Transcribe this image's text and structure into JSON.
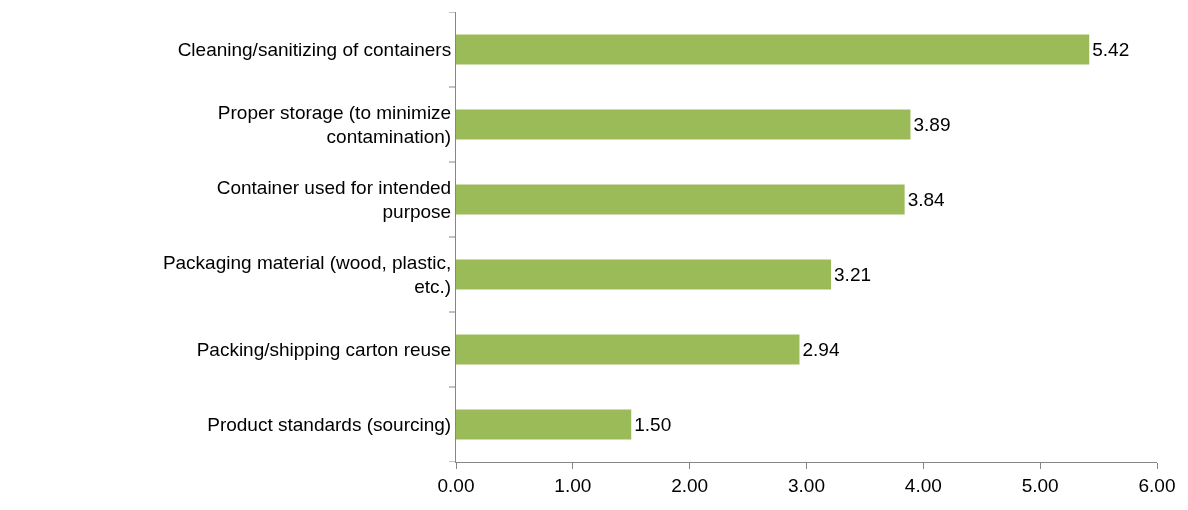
{
  "chart_data": {
    "type": "bar",
    "orientation": "horizontal",
    "categories": [
      "Cleaning/sanitizing of containers",
      "Proper storage (to minimize contamination)",
      "Container used for intended purpose",
      "Packaging material (wood, plastic, etc.)",
      "Packing/shipping carton reuse",
      "Product standards (sourcing)"
    ],
    "values": [
      5.42,
      3.89,
      3.84,
      3.21,
      2.94,
      1.5
    ],
    "value_labels": [
      "5.42",
      "3.89",
      "3.84",
      "3.21",
      "2.94",
      "1.50"
    ],
    "color": "#9bbb59",
    "xlim": [
      0,
      6
    ],
    "xticks": [
      {
        "value": 0,
        "label": "0.00"
      },
      {
        "value": 1,
        "label": "1.00"
      },
      {
        "value": 2,
        "label": "2.00"
      },
      {
        "value": 3,
        "label": "3.00"
      },
      {
        "value": 4,
        "label": "4.00"
      },
      {
        "value": 5,
        "label": "5.00"
      },
      {
        "value": 6,
        "label": "6.00"
      }
    ],
    "grid": false,
    "legend": false
  }
}
